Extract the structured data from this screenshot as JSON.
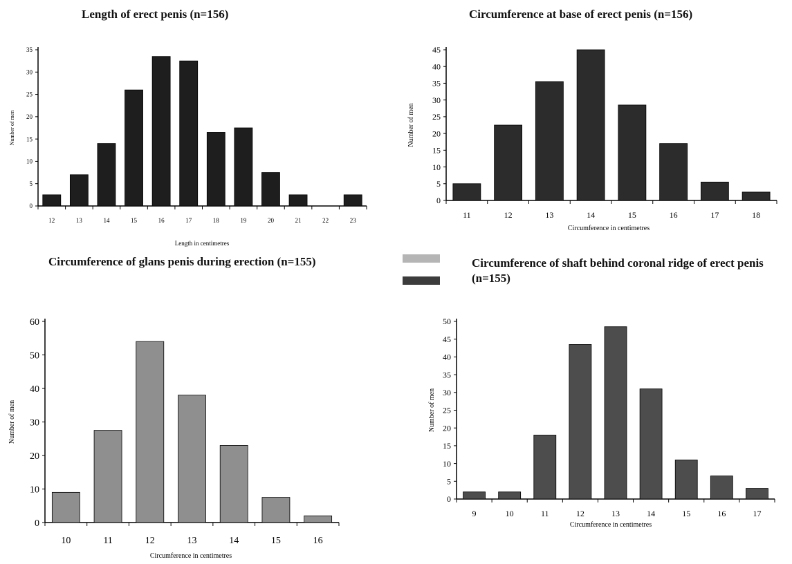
{
  "chart_data": [
    {
      "type": "bar",
      "title": "Length of erect penis (n=156)",
      "xlabel": "Length in centimetres",
      "ylabel": "Number of men",
      "categories": [
        "12",
        "13",
        "14",
        "15",
        "16",
        "17",
        "18",
        "19",
        "20",
        "21",
        "22",
        "23"
      ],
      "values": [
        2.5,
        7,
        14,
        26,
        33.5,
        32.5,
        16.5,
        17.5,
        7.5,
        2.5,
        0,
        2.5
      ],
      "ylim": [
        0,
        35
      ],
      "yticks": [
        "0",
        "5",
        "10",
        "15",
        "20",
        "25",
        "30",
        "35"
      ],
      "bar_color": "#1e1e1e"
    },
    {
      "type": "bar",
      "title": "Circumference at base of erect penis (n=156)",
      "xlabel": "Circumference in centimetres",
      "ylabel": "Number of men",
      "categories": [
        "11",
        "12",
        "13",
        "14",
        "15",
        "16",
        "17",
        "18"
      ],
      "values": [
        5,
        22.5,
        35.5,
        45,
        28.5,
        17,
        5.5,
        2.5
      ],
      "ylim": [
        0,
        45
      ],
      "yticks": [
        "0",
        "5",
        "10",
        "15",
        "20",
        "25",
        "30",
        "35",
        "40",
        "45"
      ],
      "bar_color": "#2c2c2c"
    },
    {
      "type": "bar",
      "title": "Circumference of glans penis during erection (n=155)",
      "xlabel": "Circumference in centimetres",
      "ylabel": "Number of men",
      "categories": [
        "10",
        "11",
        "12",
        "13",
        "14",
        "15",
        "16"
      ],
      "values": [
        9,
        27.5,
        54,
        38,
        23,
        7.5,
        2
      ],
      "ylim": [
        0,
        60
      ],
      "yticks": [
        "0",
        "10",
        "20",
        "30",
        "40",
        "50",
        "60"
      ],
      "bar_color": "#8f8f8f"
    },
    {
      "type": "bar",
      "title": "Circumference of shaft behind coronal ridge of erect penis (n=155)",
      "xlabel": "Circumference in centimetres",
      "ylabel": "Number of men",
      "categories": [
        "9",
        "10",
        "11",
        "12",
        "13",
        "14",
        "15",
        "16",
        "17"
      ],
      "values": [
        2,
        2,
        18,
        43.5,
        48.5,
        31,
        11,
        6.5,
        3
      ],
      "ylim": [
        0,
        50
      ],
      "yticks": [
        "0",
        "5",
        "10",
        "15",
        "20",
        "25",
        "30",
        "35",
        "40",
        "45",
        "50"
      ],
      "bar_color": "#4d4d4d"
    }
  ],
  "legend_colors": [
    "#b5b5b5",
    "#3c3c3c"
  ]
}
